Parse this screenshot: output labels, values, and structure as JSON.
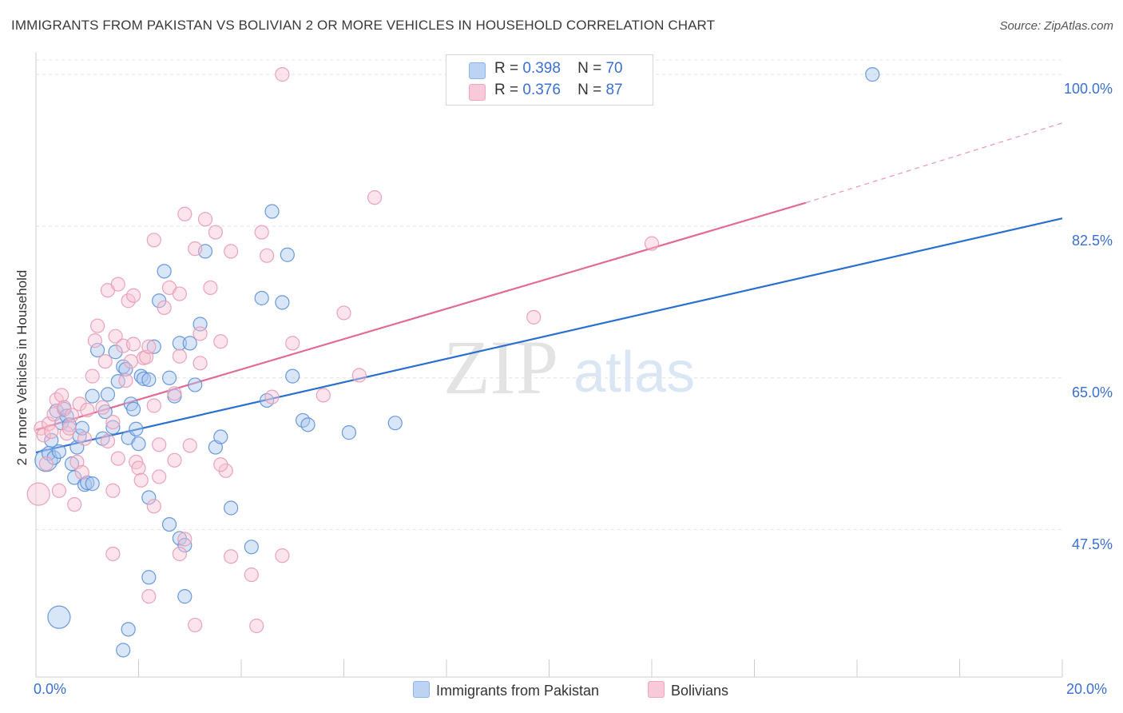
{
  "title": "IMMIGRANTS FROM PAKISTAN VS BOLIVIAN 2 OR MORE VEHICLES IN HOUSEHOLD CORRELATION CHART",
  "source": "Source: ZipAtlas.com",
  "watermark": {
    "zip": "ZIP",
    "atlas": "atlas"
  },
  "legend": {
    "series": [
      {
        "r_label": "R =",
        "r_value": "0.398",
        "n_label": "N =",
        "n_value": "70",
        "color": "#8fb4e8",
        "fill": "#bcd3f3"
      },
      {
        "r_label": "R =",
        "r_value": "0.376",
        "n_label": "N =",
        "n_value": "87",
        "color": "#f0a7be",
        "fill": "#f8c9d8"
      }
    ]
  },
  "bottom_legend": [
    "Immigrants from Pakistan",
    "Bolivians"
  ],
  "x_tick_labels": {
    "left": "0.0%",
    "right": "20.0%"
  },
  "chart_data": {
    "type": "scatter",
    "xlabel": "",
    "ylabel": "2 or more Vehicles in Household",
    "xlim": [
      0,
      20
    ],
    "ylim": [
      30.5,
      102.5
    ],
    "y_ticks": [
      {
        "value": 47.5,
        "label": "47.5%"
      },
      {
        "value": 65.0,
        "label": "65.0%"
      },
      {
        "value": 82.5,
        "label": "82.5%"
      },
      {
        "value": 100.0,
        "label": "100.0%"
      }
    ],
    "grid": true,
    "series": [
      {
        "name": "Immigrants from Pakistan",
        "color": "#5b8fd9",
        "fill": "#aac7ef",
        "trend": {
          "x": [
            0,
            20
          ],
          "y": [
            56.4,
            83.4
          ],
          "color": "#2a6fd0"
        },
        "points": [
          [
            0.2,
            55.5
          ],
          [
            0.25,
            56.3
          ],
          [
            0.3,
            57.8
          ],
          [
            0.35,
            55.8
          ],
          [
            0.4,
            61.2
          ],
          [
            0.45,
            56.5
          ],
          [
            0.5,
            59.8
          ],
          [
            0.55,
            61.4
          ],
          [
            0.6,
            60.6
          ],
          [
            0.65,
            59.6
          ],
          [
            0.7,
            55.1
          ],
          [
            0.75,
            53.5
          ],
          [
            0.8,
            57.0
          ],
          [
            0.85,
            58.3
          ],
          [
            0.9,
            59.2
          ],
          [
            0.95,
            52.7
          ],
          [
            1.1,
            62.9
          ],
          [
            1.2,
            68.2
          ],
          [
            1.3,
            58.0
          ],
          [
            1.35,
            61.1
          ],
          [
            1.4,
            63.1
          ],
          [
            1.5,
            59.3
          ],
          [
            1.55,
            68.0
          ],
          [
            1.6,
            64.6
          ],
          [
            1.7,
            66.3
          ],
          [
            1.75,
            66.0
          ],
          [
            1.8,
            58.1
          ],
          [
            1.85,
            62.0
          ],
          [
            1.9,
            61.4
          ],
          [
            1.95,
            59.1
          ],
          [
            2.0,
            57.4
          ],
          [
            2.05,
            65.2
          ],
          [
            2.1,
            64.9
          ],
          [
            2.2,
            64.8
          ],
          [
            2.3,
            68.6
          ],
          [
            2.4,
            73.9
          ],
          [
            2.5,
            77.3
          ],
          [
            2.6,
            65.0
          ],
          [
            2.7,
            62.9
          ],
          [
            2.8,
            69.0
          ],
          [
            3.0,
            69.0
          ],
          [
            3.1,
            64.2
          ],
          [
            3.2,
            71.2
          ],
          [
            3.3,
            79.6
          ],
          [
            3.5,
            57.0
          ],
          [
            3.6,
            58.2
          ],
          [
            3.8,
            50.0
          ],
          [
            4.2,
            45.5
          ],
          [
            4.4,
            74.2
          ],
          [
            4.5,
            62.4
          ],
          [
            4.6,
            84.2
          ],
          [
            4.8,
            73.7
          ],
          [
            4.9,
            79.2
          ],
          [
            5.0,
            65.2
          ],
          [
            5.2,
            60.1
          ],
          [
            5.3,
            59.6
          ],
          [
            6.1,
            58.7
          ],
          [
            7.0,
            59.8
          ],
          [
            1.0,
            52.9
          ],
          [
            1.1,
            52.8
          ],
          [
            2.2,
            51.2
          ],
          [
            2.6,
            48.1
          ],
          [
            2.8,
            46.5
          ],
          [
            2.9,
            45.7
          ],
          [
            2.2,
            42.0
          ],
          [
            2.9,
            39.8
          ],
          [
            1.7,
            33.6
          ],
          [
            1.8,
            36.0
          ],
          [
            0.45,
            37.4
          ],
          [
            16.3,
            100.0
          ]
        ],
        "big_points": [
          [
            0.2,
            55.5
          ],
          [
            0.45,
            37.4
          ]
        ]
      },
      {
        "name": "Bolivians",
        "color": "#e89ab3",
        "fill": "#f6c3d3",
        "trend": {
          "x": [
            0,
            15.0
          ],
          "y": [
            59.0,
            85.2
          ],
          "color": "#e06c95",
          "dash_to": [
            20,
            94.4
          ]
        },
        "points": [
          [
            0.05,
            51.6
          ],
          [
            0.1,
            59.2
          ],
          [
            0.15,
            58.4
          ],
          [
            0.2,
            55.1
          ],
          [
            0.25,
            59.7
          ],
          [
            0.3,
            58.8
          ],
          [
            0.35,
            60.8
          ],
          [
            0.4,
            62.5
          ],
          [
            0.45,
            52.0
          ],
          [
            0.5,
            63.0
          ],
          [
            0.55,
            61.6
          ],
          [
            0.6,
            58.6
          ],
          [
            0.65,
            59.2
          ],
          [
            0.7,
            60.7
          ],
          [
            0.75,
            50.4
          ],
          [
            0.8,
            55.3
          ],
          [
            0.85,
            62.0
          ],
          [
            0.9,
            54.1
          ],
          [
            0.95,
            58.0
          ],
          [
            1.0,
            61.3
          ],
          [
            1.1,
            65.2
          ],
          [
            1.15,
            69.3
          ],
          [
            1.2,
            71.0
          ],
          [
            1.3,
            61.6
          ],
          [
            1.35,
            66.9
          ],
          [
            1.4,
            57.7
          ],
          [
            1.5,
            59.9
          ],
          [
            1.55,
            69.8
          ],
          [
            1.6,
            55.7
          ],
          [
            1.7,
            68.7
          ],
          [
            1.75,
            64.7
          ],
          [
            1.8,
            73.9
          ],
          [
            1.85,
            66.9
          ],
          [
            1.9,
            68.9
          ],
          [
            1.95,
            55.3
          ],
          [
            2.0,
            54.6
          ],
          [
            2.05,
            53.2
          ],
          [
            2.1,
            67.3
          ],
          [
            2.15,
            67.4
          ],
          [
            2.2,
            68.6
          ],
          [
            2.3,
            61.8
          ],
          [
            2.4,
            57.3
          ],
          [
            2.5,
            73.1
          ],
          [
            2.6,
            75.4
          ],
          [
            2.7,
            63.2
          ],
          [
            2.8,
            67.5
          ],
          [
            2.9,
            83.9
          ],
          [
            3.0,
            57.2
          ],
          [
            3.1,
            79.9
          ],
          [
            3.2,
            70.1
          ],
          [
            3.3,
            83.3
          ],
          [
            3.4,
            75.4
          ],
          [
            3.5,
            81.8
          ],
          [
            3.6,
            69.2
          ],
          [
            3.7,
            54.3
          ],
          [
            3.8,
            79.6
          ],
          [
            4.4,
            81.8
          ],
          [
            4.5,
            79.1
          ],
          [
            4.6,
            62.8
          ],
          [
            5.0,
            69.0
          ],
          [
            5.6,
            63.0
          ],
          [
            6.0,
            72.5
          ],
          [
            6.3,
            65.3
          ],
          [
            6.6,
            85.8
          ],
          [
            9.7,
            72.0
          ],
          [
            12.0,
            80.5
          ],
          [
            1.4,
            75.1
          ],
          [
            1.6,
            75.8
          ],
          [
            1.9,
            74.5
          ],
          [
            2.3,
            80.9
          ],
          [
            2.8,
            74.7
          ],
          [
            3.2,
            66.7
          ],
          [
            2.4,
            53.6
          ],
          [
            2.7,
            55.5
          ],
          [
            3.6,
            55.0
          ],
          [
            1.5,
            52.0
          ],
          [
            2.3,
            50.2
          ],
          [
            2.8,
            44.7
          ],
          [
            3.8,
            44.4
          ],
          [
            4.2,
            42.3
          ],
          [
            1.5,
            44.7
          ],
          [
            2.9,
            46.4
          ],
          [
            3.1,
            36.5
          ],
          [
            4.3,
            36.4
          ],
          [
            2.2,
            39.8
          ],
          [
            4.8,
            44.5
          ],
          [
            4.8,
            100.0
          ]
        ],
        "big_points": [
          [
            0.05,
            51.6
          ]
        ]
      }
    ]
  }
}
